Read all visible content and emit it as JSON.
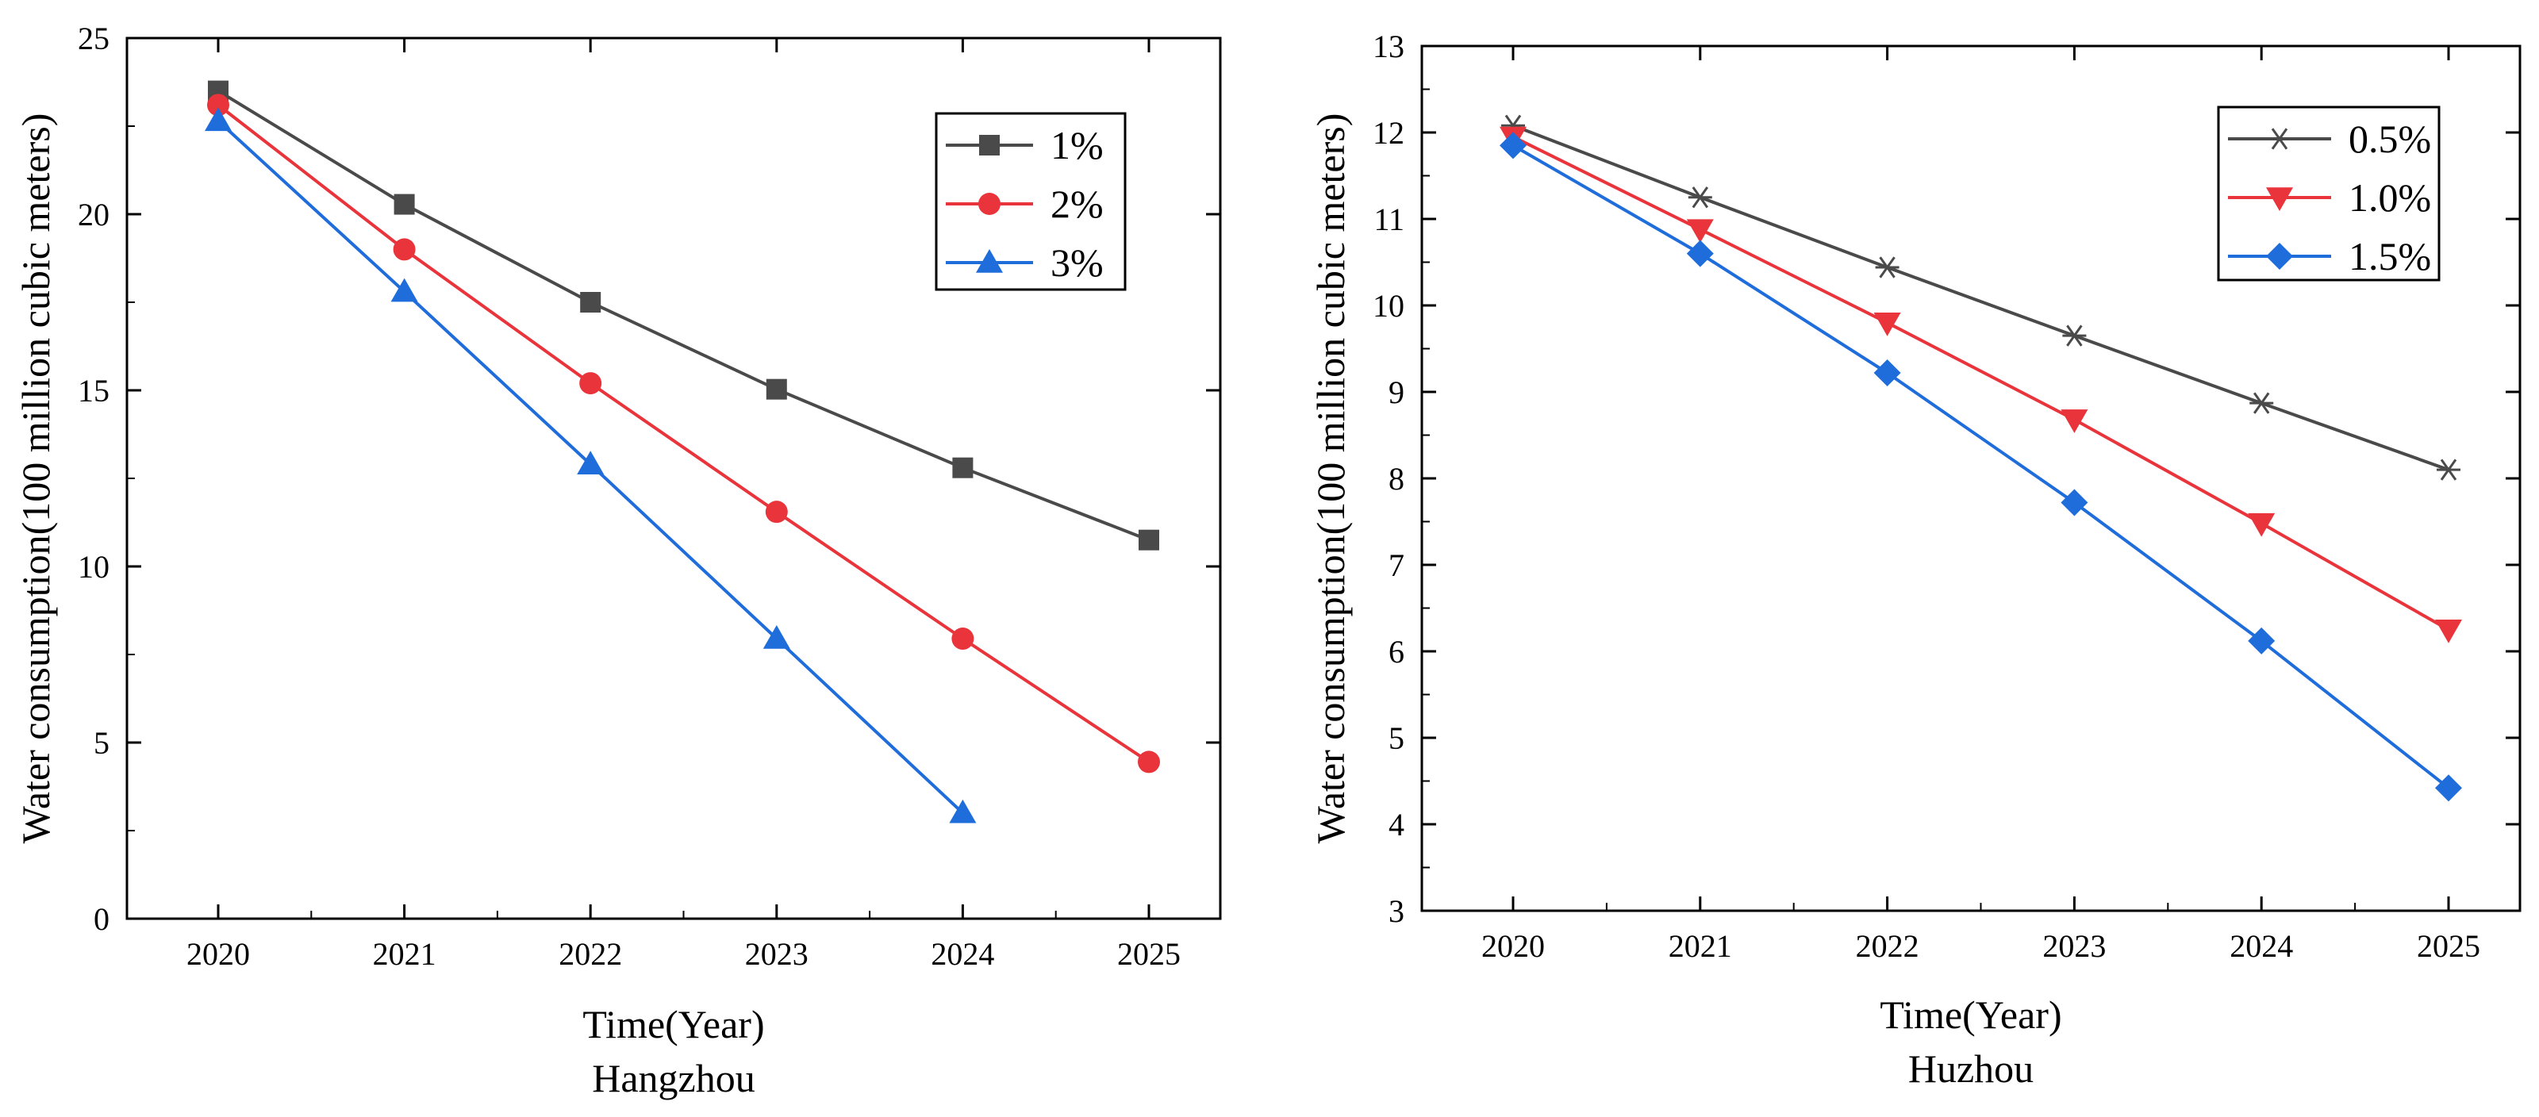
{
  "chart_data": [
    {
      "type": "line",
      "title": "",
      "caption": "Hangzhou",
      "xlabel": "Time(Year)",
      "ylabel": "Water consumption(100 million cubic meters)",
      "x": [
        "2020",
        "2021",
        "2022",
        "2023",
        "2024",
        "2025"
      ],
      "xlim": [
        "2020",
        "2025"
      ],
      "ylim": [
        0,
        25
      ],
      "yticks": [
        0,
        5,
        10,
        15,
        20,
        25
      ],
      "grid": false,
      "legend_position": "top-right",
      "series": [
        {
          "name": "1%",
          "color": "#4a4a4a",
          "marker": "square",
          "values": [
            23.5,
            20.28,
            17.5,
            15.03,
            12.8,
            10.75
          ]
        },
        {
          "name": "2%",
          "color": "#e8343a",
          "marker": "circle",
          "values": [
            23.1,
            19.0,
            15.2,
            11.55,
            7.95,
            4.45
          ]
        },
        {
          "name": "3%",
          "color": "#1f6ddb",
          "marker": "triangle-up",
          "values": [
            22.65,
            17.8,
            12.9,
            7.95,
            3.0,
            null
          ]
        }
      ]
    },
    {
      "type": "line",
      "title": "",
      "caption": "Huzhou",
      "xlabel": "Time(Year)",
      "ylabel": "Water consumption(100 million cubic meters)",
      "x": [
        "2020",
        "2021",
        "2022",
        "2023",
        "2024",
        "2025"
      ],
      "xlim": [
        "2020",
        "2025"
      ],
      "ylim": [
        3,
        13
      ],
      "yticks": [
        3,
        4,
        5,
        6,
        7,
        8,
        9,
        10,
        11,
        12,
        13
      ],
      "grid": false,
      "legend_position": "top-right",
      "series": [
        {
          "name": "0.5%",
          "color": "#4a4a4a",
          "marker": "star",
          "values": [
            12.08,
            11.25,
            10.44,
            9.65,
            8.87,
            8.1
          ]
        },
        {
          "name": "1.0%",
          "color": "#e8343a",
          "marker": "triangle-down",
          "values": [
            11.95,
            10.88,
            9.8,
            8.68,
            7.48,
            6.25
          ]
        },
        {
          "name": "1.5%",
          "color": "#1f6ddb",
          "marker": "diamond",
          "values": [
            11.85,
            10.6,
            9.22,
            7.72,
            6.12,
            4.42
          ]
        }
      ]
    }
  ]
}
